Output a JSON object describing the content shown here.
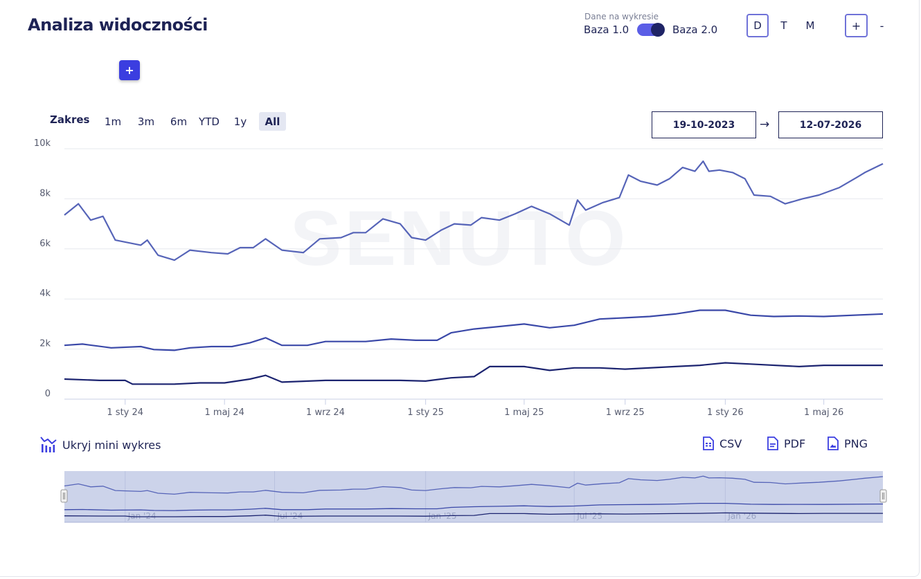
{
  "header": {
    "title": "Analiza widoczności",
    "add_label": "+",
    "toggle_caption": "Dane na wykresie",
    "toggle_left": "Baza 1.0",
    "toggle_right": "Baza 2.0",
    "periods": [
      "D",
      "T",
      "M"
    ],
    "active_period": "D",
    "zoom_in": "+",
    "zoom_out": "-"
  },
  "range": {
    "label": "Zakres",
    "options": [
      "1m",
      "3m",
      "6m",
      "YTD",
      "1y",
      "All"
    ],
    "active": "All",
    "date_from": "19-10-2023",
    "date_arrow": "→",
    "date_to": "12-07-2026"
  },
  "watermark": "SENUTO",
  "footer": {
    "hide_mini": "Ukryj mini wykres",
    "csv": "CSV",
    "pdf": "PDF",
    "png": "PNG"
  },
  "colors": {
    "accent": "#3b3ee0",
    "series_top": "#5664b8",
    "series_mid": "#3a48a8",
    "series_bottom": "#1c2470",
    "navigator_fill": "#ccd3ea"
  },
  "chart_data": {
    "type": "line",
    "x_start": "2023-10-19",
    "x_end": "2026-07-12",
    "ylim": [
      0,
      10000
    ],
    "y_ticks": [
      0,
      2000,
      4000,
      6000,
      8000,
      10000
    ],
    "y_tick_labels": [
      "0",
      "2k",
      "4k",
      "6k",
      "8k",
      "10k"
    ],
    "x_ticks": [
      {
        "date": "2024-01-01",
        "label": "1 sty 24"
      },
      {
        "date": "2024-05-01",
        "label": "1 maj 24"
      },
      {
        "date": "2024-09-01",
        "label": "1 wrz 24"
      },
      {
        "date": "2025-01-01",
        "label": "1 sty 25"
      },
      {
        "date": "2025-05-01",
        "label": "1 maj 25"
      },
      {
        "date": "2025-09-01",
        "label": "1 wrz 25"
      },
      {
        "date": "2026-01-01",
        "label": "1 sty 26"
      },
      {
        "date": "2026-05-01",
        "label": "1 maj 26"
      }
    ],
    "navigator_ticks": [
      {
        "date": "2024-01-01",
        "label": "Jan '24"
      },
      {
        "date": "2024-07-01",
        "label": "Jul '24"
      },
      {
        "date": "2025-01-01",
        "label": "Jan '25"
      },
      {
        "date": "2025-07-01",
        "label": "Jul '25"
      },
      {
        "date": "2026-01-01",
        "label": "Jan '26"
      }
    ],
    "grid": true,
    "legend": "none",
    "series": [
      {
        "points": [
          [
            "2023-10-19",
            7350
          ],
          [
            "2023-11-05",
            7800
          ],
          [
            "2023-11-20",
            7150
          ],
          [
            "2023-12-05",
            7300
          ],
          [
            "2023-12-20",
            6350
          ],
          [
            "2024-01-20",
            6150
          ],
          [
            "2024-01-28",
            6350
          ],
          [
            "2024-02-10",
            5750
          ],
          [
            "2024-03-01",
            5550
          ],
          [
            "2024-03-20",
            5950
          ],
          [
            "2024-04-15",
            5850
          ],
          [
            "2024-05-05",
            5800
          ],
          [
            "2024-05-20",
            6050
          ],
          [
            "2024-06-05",
            6050
          ],
          [
            "2024-06-20",
            6400
          ],
          [
            "2024-07-10",
            5950
          ],
          [
            "2024-08-05",
            5850
          ],
          [
            "2024-08-25",
            6400
          ],
          [
            "2024-09-20",
            6450
          ],
          [
            "2024-10-05",
            6650
          ],
          [
            "2024-10-20",
            6650
          ],
          [
            "2024-11-10",
            7200
          ],
          [
            "2024-12-01",
            7000
          ],
          [
            "2024-12-15",
            6450
          ],
          [
            "2025-01-01",
            6350
          ],
          [
            "2025-01-20",
            6750
          ],
          [
            "2025-02-05",
            7000
          ],
          [
            "2025-02-25",
            6950
          ],
          [
            "2025-03-10",
            7250
          ],
          [
            "2025-04-01",
            7150
          ],
          [
            "2025-04-20",
            7400
          ],
          [
            "2025-05-10",
            7700
          ],
          [
            "2025-06-01",
            7400
          ],
          [
            "2025-06-25",
            6950
          ],
          [
            "2025-07-05",
            7950
          ],
          [
            "2025-07-15",
            7550
          ],
          [
            "2025-08-05",
            7850
          ],
          [
            "2025-08-25",
            8050
          ],
          [
            "2025-09-05",
            8950
          ],
          [
            "2025-09-20",
            8700
          ],
          [
            "2025-10-10",
            8550
          ],
          [
            "2025-10-25",
            8800
          ],
          [
            "2025-11-10",
            9250
          ],
          [
            "2025-11-25",
            9100
          ],
          [
            "2025-12-05",
            9500
          ],
          [
            "2025-12-12",
            9100
          ],
          [
            "2025-12-25",
            9150
          ],
          [
            "2026-01-10",
            9050
          ],
          [
            "2026-01-25",
            8800
          ],
          [
            "2026-02-05",
            8150
          ],
          [
            "2026-02-25",
            8100
          ],
          [
            "2026-03-15",
            7800
          ],
          [
            "2026-04-05",
            8000
          ],
          [
            "2026-04-25",
            8150
          ],
          [
            "2026-05-20",
            8450
          ],
          [
            "2026-06-10",
            8850
          ],
          [
            "2026-06-20",
            9050
          ],
          [
            "2026-07-12",
            9400
          ]
        ]
      },
      {
        "points": [
          [
            "2023-10-19",
            2150
          ],
          [
            "2023-11-10",
            2200
          ],
          [
            "2023-12-15",
            2050
          ],
          [
            "2024-01-20",
            2100
          ],
          [
            "2024-02-05",
            1980
          ],
          [
            "2024-03-01",
            1950
          ],
          [
            "2024-03-20",
            2050
          ],
          [
            "2024-04-15",
            2100
          ],
          [
            "2024-05-10",
            2100
          ],
          [
            "2024-06-01",
            2250
          ],
          [
            "2024-06-20",
            2450
          ],
          [
            "2024-07-10",
            2150
          ],
          [
            "2024-08-10",
            2150
          ],
          [
            "2024-09-01",
            2300
          ],
          [
            "2024-09-20",
            2300
          ],
          [
            "2024-10-20",
            2300
          ],
          [
            "2024-11-20",
            2400
          ],
          [
            "2024-12-20",
            2350
          ],
          [
            "2025-01-15",
            2350
          ],
          [
            "2025-02-01",
            2650
          ],
          [
            "2025-03-01",
            2800
          ],
          [
            "2025-04-01",
            2900
          ],
          [
            "2025-05-01",
            3000
          ],
          [
            "2025-06-01",
            2850
          ],
          [
            "2025-07-01",
            2950
          ],
          [
            "2025-08-01",
            3200
          ],
          [
            "2025-09-01",
            3250
          ],
          [
            "2025-10-01",
            3300
          ],
          [
            "2025-11-01",
            3400
          ],
          [
            "2025-12-01",
            3550
          ],
          [
            "2026-01-01",
            3550
          ],
          [
            "2026-02-01",
            3350
          ],
          [
            "2026-03-01",
            3300
          ],
          [
            "2026-04-01",
            3320
          ],
          [
            "2026-05-01",
            3300
          ],
          [
            "2026-07-12",
            3400
          ]
        ]
      },
      {
        "points": [
          [
            "2023-10-19",
            800
          ],
          [
            "2023-12-01",
            750
          ],
          [
            "2024-01-01",
            750
          ],
          [
            "2024-01-10",
            600
          ],
          [
            "2024-03-01",
            600
          ],
          [
            "2024-04-01",
            650
          ],
          [
            "2024-05-01",
            650
          ],
          [
            "2024-06-01",
            800
          ],
          [
            "2024-06-20",
            950
          ],
          [
            "2024-07-10",
            680
          ],
          [
            "2024-09-01",
            750
          ],
          [
            "2024-11-01",
            750
          ],
          [
            "2024-12-01",
            750
          ],
          [
            "2025-01-01",
            720
          ],
          [
            "2025-02-01",
            850
          ],
          [
            "2025-03-01",
            900
          ],
          [
            "2025-03-20",
            1300
          ],
          [
            "2025-05-01",
            1300
          ],
          [
            "2025-06-01",
            1150
          ],
          [
            "2025-07-01",
            1250
          ],
          [
            "2025-08-01",
            1250
          ],
          [
            "2025-09-01",
            1200
          ],
          [
            "2025-11-01",
            1300
          ],
          [
            "2025-12-01",
            1350
          ],
          [
            "2026-01-01",
            1450
          ],
          [
            "2026-02-01",
            1400
          ],
          [
            "2026-04-01",
            1300
          ],
          [
            "2026-05-01",
            1350
          ],
          [
            "2026-07-12",
            1350
          ]
        ]
      }
    ]
  }
}
